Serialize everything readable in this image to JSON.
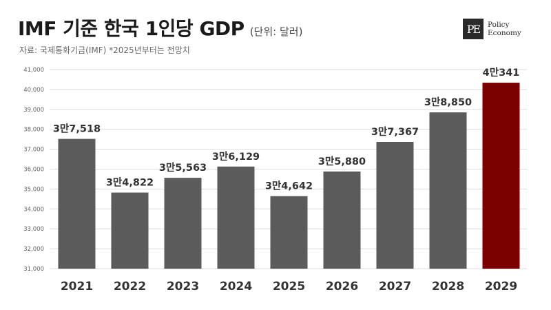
{
  "header": {
    "title": "IMF 기준 한국 1인당 GDP",
    "unit": "(단위: 달러)",
    "source": "자료: 국제통화기금(IMF) *2025년부터는 전망치"
  },
  "logo": {
    "mark": "PE",
    "line1": "Policy",
    "line2": "Economy"
  },
  "colors": {
    "bar": "#5b5b5b",
    "highlight": "#7b0000",
    "grid": "#dddddd"
  },
  "chart_data": {
    "type": "bar",
    "categories": [
      "2021",
      "2022",
      "2023",
      "2024",
      "2025",
      "2026",
      "2027",
      "2028",
      "2029"
    ],
    "values": [
      37518,
      34822,
      35563,
      36129,
      34642,
      35880,
      37367,
      38850,
      40341
    ],
    "data_labels": [
      "3만7,518",
      "3만4,822",
      "3만5,563",
      "3만6,129",
      "3만4,642",
      "3만5,880",
      "3만7,367",
      "3만8,850",
      "4만341"
    ],
    "ylim": [
      31000,
      41000
    ],
    "yticks": [
      31000,
      32000,
      33000,
      34000,
      35000,
      36000,
      37000,
      38000,
      39000,
      40000,
      41000
    ],
    "ytick_labels": [
      "31,000",
      "32,000",
      "33,000",
      "34,000",
      "35,000",
      "36,000",
      "37,000",
      "38,000",
      "39,000",
      "40,000",
      "41,000"
    ],
    "highlight_index": 8,
    "grid": true,
    "title": "IMF 기준 한국 1인당 GDP"
  }
}
